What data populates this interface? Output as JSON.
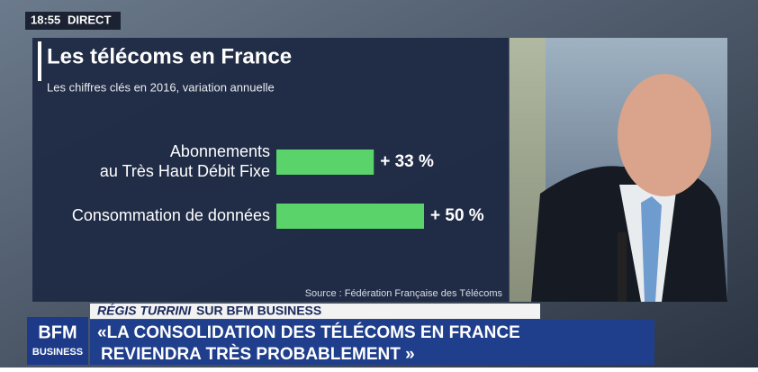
{
  "clock": "18:55",
  "live": "DIRECT",
  "chart_data": {
    "type": "bar",
    "orientation": "horizontal",
    "title": "Les télécoms en France",
    "subtitle": "Les chiffres clés en 2016, variation annuelle",
    "categories": [
      [
        "Abonnements",
        "au Très Haut Débit Fixe"
      ],
      [
        "Consommation de données"
      ]
    ],
    "values": [
      33,
      50
    ],
    "value_labels": [
      "+ 33 %",
      "+ 50 %"
    ],
    "color": "#5ad36a",
    "source": "Source : Fédération Française des Télécoms"
  },
  "lower_third": {
    "name": "RÉGIS TURRINI",
    "channel": "SUR BFM BUSINESS",
    "headline": [
      "«LA CONSOLIDATION DES TÉLÉCOMS EN FRANCE",
      "REVIENDRA TRÈS PROBABLEMENT »"
    ]
  },
  "logo": {
    "brand": "BFM",
    "sub": "BUSINESS"
  }
}
